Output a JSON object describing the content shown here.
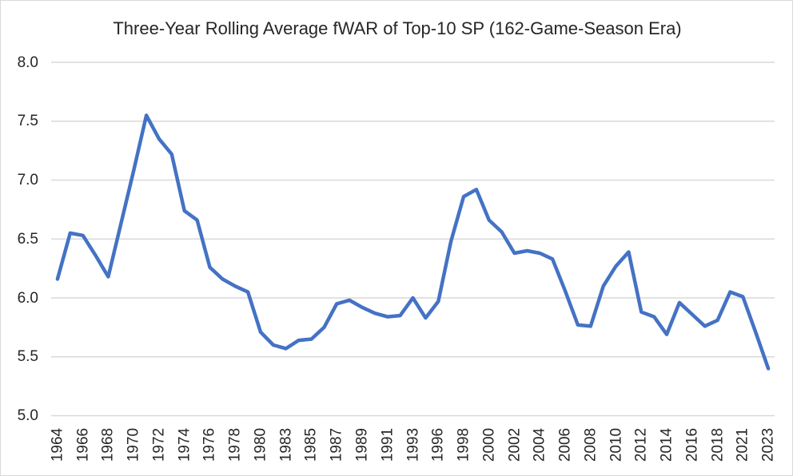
{
  "title": "Three-Year Rolling Average fWAR of Top-10 SP (162-Game-Season Era)",
  "colors": {
    "line": "#4472C4",
    "gridline": "#D9D9D9",
    "text": "#262626",
    "background": "#FFFFFF",
    "frame_border": "#D9D9D9"
  },
  "chart_data": {
    "type": "line",
    "title": "Three-Year Rolling Average fWAR of Top-10 SP (162-Game-Season Era)",
    "xlabel": "",
    "ylabel": "",
    "ylim": [
      5.0,
      8.0
    ],
    "grid": "horizontal",
    "legend": "none",
    "note_missing_years": "1981, 1994 and 2020 are absent from the category axis",
    "categories": [
      "1964",
      "1965",
      "1966",
      "1967",
      "1968",
      "1969",
      "1970",
      "1971",
      "1972",
      "1973",
      "1974",
      "1975",
      "1976",
      "1977",
      "1978",
      "1979",
      "1980",
      "1982",
      "1983",
      "1984",
      "1985",
      "1986",
      "1987",
      "1988",
      "1989",
      "1990",
      "1991",
      "1992",
      "1993",
      "1995",
      "1996",
      "1997",
      "1998",
      "1999",
      "2000",
      "2001",
      "2002",
      "2003",
      "2004",
      "2005",
      "2006",
      "2007",
      "2008",
      "2009",
      "2010",
      "2011",
      "2012",
      "2013",
      "2014",
      "2015",
      "2016",
      "2017",
      "2018",
      "2019",
      "2021",
      "2022",
      "2023"
    ],
    "values": [
      6.16,
      6.55,
      6.53,
      6.36,
      6.18,
      6.63,
      7.08,
      7.55,
      7.35,
      7.22,
      6.74,
      6.66,
      6.26,
      6.16,
      6.1,
      6.05,
      5.71,
      5.6,
      5.57,
      5.64,
      5.65,
      5.75,
      5.95,
      5.98,
      5.92,
      5.87,
      5.84,
      5.85,
      6.0,
      5.83,
      5.97,
      6.48,
      6.86,
      6.92,
      6.66,
      6.56,
      6.38,
      6.4,
      6.38,
      6.33,
      6.06,
      5.77,
      5.76,
      6.1,
      6.27,
      6.39,
      5.88,
      5.84,
      5.69,
      5.96,
      5.86,
      5.76,
      5.81,
      6.05,
      6.01,
      5.71,
      5.4
    ],
    "x_tick_labels": [
      "1964",
      "1966",
      "1968",
      "1970",
      "1972",
      "1974",
      "1976",
      "1978",
      "1980",
      "1983",
      "1985",
      "1987",
      "1989",
      "1991",
      "1993",
      "1996",
      "1998",
      "2000",
      "2002",
      "2004",
      "2006",
      "2008",
      "2010",
      "2012",
      "2014",
      "2016",
      "2018",
      "2021",
      "2023"
    ],
    "y_tick_labels": [
      "8.0",
      "7.5",
      "7.0",
      "6.5",
      "6.0",
      "5.5",
      "5.0"
    ],
    "y_tick_values": [
      8.0,
      7.5,
      7.0,
      6.5,
      6.0,
      5.5,
      5.0
    ]
  }
}
